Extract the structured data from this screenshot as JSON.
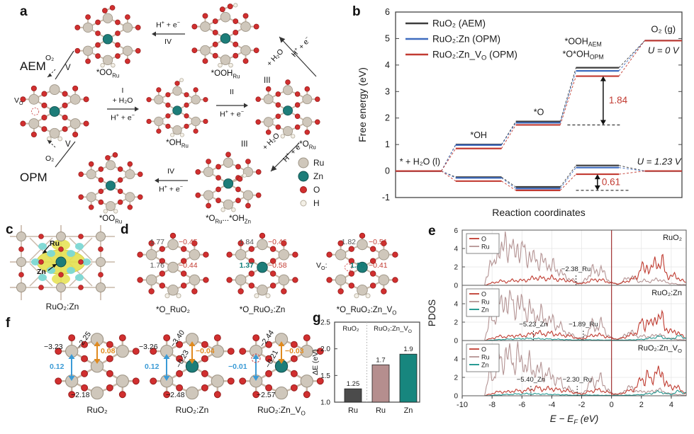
{
  "colors": {
    "ru_atom": "#cfc7bb",
    "ru_stroke": "#9d9485",
    "zn_atom": "#1d7d79",
    "zn_stroke": "#115250",
    "o_atom": "#d12f2f",
    "o_stroke": "#9c1f1f",
    "h_atom": "#f3efe6",
    "h_stroke": "#b7afa0",
    "bond": "#c9b8a8",
    "series_black": "#3d3d3d",
    "series_blue": "#3f6cbf",
    "series_red": "#c23b32",
    "curve_o": "#bf3b30",
    "curve_ru": "#b49494",
    "curve_zn": "#129088",
    "fermi": "#a03030",
    "bar_gray": "#4b4b4b",
    "bar_rose": "#b58e8e",
    "bar_teal": "#17867e",
    "arrow_blue": "#3b9bd6",
    "arrow_orange": "#e08a1e",
    "blob_yellow": "#e5e04f",
    "blob_cyan": "#7cd8d4",
    "vacancy_ring": "#d05050"
  },
  "panel_labels": {
    "a": "a",
    "b": "b",
    "c": "c",
    "d": "d",
    "e": "e",
    "f": "f",
    "g": "g"
  },
  "panel_a": {
    "aem": "AEM",
    "opm": "OPM",
    "captions": {
      "oo_aem": "*OO_{Ru}",
      "ooh_aem": "*OOH_{Ru}",
      "vo": "V_{O}",
      "oh": "*OH_{Ru}",
      "o": "*O_{Ru}",
      "oo_opm": "*OO_{Ru}",
      "o_oh_zn": "*O_{Ru}...*OH_{Zn}"
    },
    "steps": {
      "i": "I",
      "ii": "II",
      "iii": "III",
      "iv": "IV",
      "v": "V",
      "plus_h2o": "+ H₂O",
      "h_plus_e": "H^{+} + e^{−}",
      "o2": "O₂"
    },
    "legend": [
      {
        "label": "Ru",
        "atom": "ru_atom",
        "stroke": "ru_stroke"
      },
      {
        "label": "Zn",
        "atom": "zn_atom",
        "stroke": "zn_stroke"
      },
      {
        "label": "O",
        "atom": "o_atom",
        "stroke": "o_stroke"
      },
      {
        "label": "H",
        "atom": "h_atom",
        "stroke": "h_stroke"
      }
    ]
  },
  "panel_c": {
    "caption": "RuO₂:Zn",
    "ru": "Ru",
    "zn": "Zn"
  },
  "panel_d": {
    "structures": [
      {
        "caption": "*O_RuO₂",
        "top_len": "1.77",
        "top_chg": "−0.45",
        "mid_len": "1.76",
        "mid_chg": "−0.44",
        "mid_is_zn": false
      },
      {
        "caption": "*O_RuO₂:Zn",
        "top_len": "1.84",
        "top_chg": "−0.46",
        "mid_len": "1.37",
        "mid_chg": "−0.58",
        "mid_is_zn": true
      },
      {
        "caption": "*O_RuO₂:Zn_V_{O}",
        "top_len": "1.82",
        "top_chg": "−0.51",
        "mid_len": "1.36",
        "mid_chg": "−0.41",
        "mid_is_zn": true,
        "vo": "V_{O}:"
      }
    ]
  },
  "panel_f": {
    "structures": [
      {
        "caption": "RuO₂",
        "left_top": "−3.23",
        "diag1": "−2.25",
        "diag2": "",
        "orange": "0.08",
        "cyan": "0.12",
        "bottom": "−2.18"
      },
      {
        "caption": "RuO₂:Zn",
        "left_top": "−3.26",
        "diag1": "−3.40",
        "diag2": "−0.23",
        "orange": "−0.04",
        "cyan": "0.12",
        "bottom": "−2.48"
      },
      {
        "caption": "RuO₂:Zn_V_{O}",
        "left_top": "",
        "diag1": "−2.44",
        "diag2": "−0.21",
        "orange": "−0.03",
        "cyan": "−0.01",
        "bottom": "−2.57"
      }
    ]
  },
  "chart_data": [
    {
      "id": "panel_b",
      "type": "line",
      "xlabel": "Reaction coordinates",
      "ylabel": "Free energy (eV)",
      "ylim": [
        -1,
        6
      ],
      "yticks": [
        -1,
        0,
        1,
        2,
        3,
        4,
        5,
        6
      ],
      "species": [
        "* + H₂O (l)",
        "*OH",
        "*O",
        "*OOH",
        "O₂ (g)"
      ],
      "series": [
        {
          "name": "RuO₂ (AEM)",
          "color": "series_black",
          "u0": [
            0,
            1.0,
            1.87,
            3.9,
            4.92
          ],
          "u123": [
            0,
            -0.23,
            -0.6,
            0.21,
            0
          ]
        },
        {
          "name": "RuO₂:Zn (OPM)",
          "color": "series_blue",
          "u0": [
            0,
            0.98,
            1.82,
            3.78,
            4.92
          ],
          "u123": [
            0,
            -0.26,
            -0.66,
            0.13,
            0
          ]
        },
        {
          "name": "RuO₂:Zn_V_{O} (OPM)",
          "color": "series_red",
          "u0": [
            0,
            0.85,
            1.74,
            3.58,
            4.92
          ],
          "u123": [
            0,
            -0.38,
            -0.73,
            -0.12,
            0
          ]
        }
      ],
      "annotations": {
        "start": "* + H₂O (l)",
        "oh": "*OH",
        "o": "*O",
        "ooh_aem": "*OOH_{AEM}",
        "ooh_opm": "*O*OH_{OPM}",
        "o2": "O₂ (g)",
        "u0": "U = 0 V",
        "u123": "U = 1.23 V",
        "gap_top": "1.84",
        "gap_bottom": "0.61"
      },
      "legend_position": "top-left",
      "grid": false
    },
    {
      "id": "panel_e",
      "type": "line",
      "xlabel": "E − E_{F} (eV)",
      "ylabel": "PDOS",
      "xlim": [
        -10,
        5
      ],
      "xticks": [
        -10,
        -8,
        -6,
        -4,
        -2,
        0,
        2,
        4
      ],
      "ylim": [
        0,
        6
      ],
      "yticks": [
        0,
        2,
        4,
        6
      ],
      "fermi_line_x": 0,
      "grid": true,
      "subplots": [
        {
          "title": "RuO₂",
          "series": [
            "O",
            "Ru"
          ],
          "annotations": [
            {
              "x": -2.38,
              "label": "−2.38_Ru"
            }
          ]
        },
        {
          "title": "RuO₂:Zn",
          "series": [
            "O",
            "Ru",
            "Zn"
          ],
          "annotations": [
            {
              "x": -5.23,
              "label": "−5.23_Zn"
            },
            {
              "x": -1.89,
              "label": "−1.89_Ru"
            }
          ]
        },
        {
          "title": "RuO₂:Zn_V_{O}",
          "series": [
            "O",
            "Ru",
            "Zn"
          ],
          "annotations": [
            {
              "x": -5.4,
              "label": "−5.40_Zn"
            },
            {
              "x": -2.3,
              "label": "−2.30_Ru"
            }
          ]
        }
      ],
      "envelopes": {
        "Ru": [
          [
            -8.5,
            0
          ],
          [
            -8.3,
            1.5
          ],
          [
            -8.1,
            2.6
          ],
          [
            -7.9,
            1.8
          ],
          [
            -7.7,
            3.4
          ],
          [
            -7.5,
            4.3
          ],
          [
            -7.3,
            3.2
          ],
          [
            -7.1,
            5.0
          ],
          [
            -6.9,
            3.8
          ],
          [
            -6.7,
            4.5
          ],
          [
            -6.5,
            3.0
          ],
          [
            -6.3,
            4.7
          ],
          [
            -6.1,
            3.3
          ],
          [
            -5.9,
            4.2
          ],
          [
            -5.7,
            2.8
          ],
          [
            -5.5,
            3.5
          ],
          [
            -5.3,
            2.6
          ],
          [
            -5.1,
            3.1
          ],
          [
            -4.9,
            2.4
          ],
          [
            -4.7,
            2.9
          ],
          [
            -4.5,
            2.2
          ],
          [
            -4.3,
            2.6
          ],
          [
            -4.1,
            1.9
          ],
          [
            -3.9,
            2.2
          ],
          [
            -3.7,
            1.5
          ],
          [
            -3.5,
            1.8
          ],
          [
            -3.3,
            1.2
          ],
          [
            -3.1,
            0.9
          ],
          [
            -2.9,
            0.8
          ],
          [
            -2.7,
            0.6
          ],
          [
            -2.5,
            0.5
          ],
          [
            -2.3,
            0.3
          ],
          [
            -2.1,
            0.2
          ],
          [
            -1.9,
            0.35
          ],
          [
            -1.7,
            0.7
          ],
          [
            -1.5,
            1.1
          ],
          [
            -1.3,
            1.8
          ],
          [
            -1.1,
            1.3
          ],
          [
            -0.9,
            1.6
          ],
          [
            -0.7,
            1.9
          ],
          [
            -0.5,
            1.2
          ],
          [
            -0.3,
            0.7
          ],
          [
            -0.1,
            0.4
          ],
          [
            0.1,
            0.2
          ],
          [
            0.4,
            0.15
          ],
          [
            0.7,
            0.3
          ],
          [
            1.0,
            0.8
          ],
          [
            1.3,
            0.9
          ],
          [
            1.6,
            0.6
          ],
          [
            1.9,
            0.4
          ],
          [
            2.2,
            0.5
          ],
          [
            2.5,
            0.4
          ],
          [
            2.8,
            0.5
          ],
          [
            3.1,
            0.7
          ],
          [
            3.4,
            0.5
          ],
          [
            3.7,
            0.3
          ],
          [
            4.0,
            0.2
          ],
          [
            4.5,
            0.1
          ],
          [
            5.0,
            0.05
          ]
        ],
        "O": [
          [
            -8.5,
            0
          ],
          [
            -8.0,
            0.25
          ],
          [
            -7.5,
            0.45
          ],
          [
            -7.0,
            0.4
          ],
          [
            -6.5,
            0.55
          ],
          [
            -6.0,
            0.5
          ],
          [
            -5.5,
            0.65
          ],
          [
            -5.0,
            0.85
          ],
          [
            -4.5,
            0.7
          ],
          [
            -4.0,
            0.8
          ],
          [
            -3.5,
            0.6
          ],
          [
            -3.0,
            0.55
          ],
          [
            -2.5,
            0.35
          ],
          [
            -2.0,
            0.15
          ],
          [
            -1.5,
            0.45
          ],
          [
            -1.0,
            0.65
          ],
          [
            -0.5,
            0.5
          ],
          [
            0.0,
            0.25
          ],
          [
            0.5,
            0.15
          ],
          [
            1.0,
            0.45
          ],
          [
            1.5,
            0.7
          ],
          [
            1.8,
            1.2
          ],
          [
            2.0,
            2.1
          ],
          [
            2.2,
            1.5
          ],
          [
            2.4,
            2.3
          ],
          [
            2.6,
            1.6
          ],
          [
            2.8,
            2.0
          ],
          [
            3.0,
            2.9
          ],
          [
            3.2,
            2.1
          ],
          [
            3.4,
            2.6
          ],
          [
            3.6,
            1.5
          ],
          [
            3.8,
            1.0
          ],
          [
            4.0,
            0.9
          ],
          [
            4.3,
            1.1
          ],
          [
            4.6,
            0.6
          ],
          [
            5.0,
            0.3
          ]
        ],
        "Zn": [
          [
            -8.5,
            0
          ],
          [
            -7.5,
            0.1
          ],
          [
            -6.5,
            0.18
          ],
          [
            -5.5,
            0.22
          ],
          [
            -4.5,
            0.18
          ],
          [
            -3.5,
            0.12
          ],
          [
            -2.5,
            0.06
          ],
          [
            -1.5,
            0.08
          ],
          [
            -0.5,
            0.05
          ],
          [
            0.5,
            0.05
          ],
          [
            1.5,
            0.08
          ],
          [
            2.2,
            0.15
          ],
          [
            2.8,
            0.3
          ],
          [
            3.2,
            0.45
          ],
          [
            3.6,
            0.25
          ],
          [
            4.0,
            0.15
          ],
          [
            4.5,
            0.5
          ],
          [
            5.0,
            0.25
          ]
        ]
      }
    },
    {
      "id": "panel_g",
      "type": "bar",
      "ylabel": "ΔE (eV)",
      "ylim": [
        1.0,
        2.5
      ],
      "yticks": [
        1.0,
        1.5,
        2.0,
        2.5
      ],
      "categories": [
        "Ru",
        "Ru",
        "Zn"
      ],
      "values": [
        1.25,
        1.7,
        1.9
      ],
      "value_labels": [
        "1.25",
        "1.7",
        "1.9"
      ],
      "bar_colors": [
        "bar_gray",
        "bar_rose",
        "bar_teal"
      ],
      "group_labels": [
        "RuO₂",
        "RuO₂:Zn_V_{O}"
      ],
      "grid": false
    }
  ]
}
